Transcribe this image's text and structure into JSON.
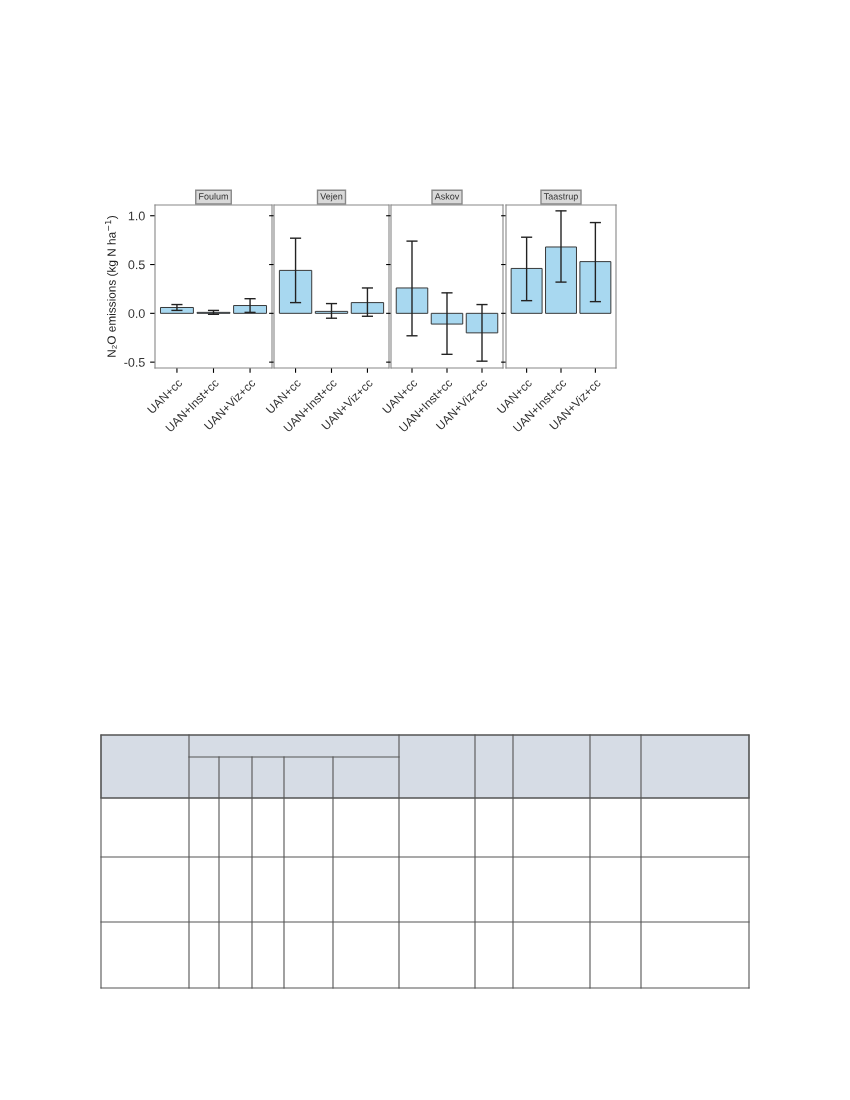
{
  "chart_data": [
    {
      "type": "bar",
      "title": "Foulum",
      "ylabel": "N₂O emissions (kg N ha$^{−1}$)",
      "categories": [
        "UAN+cc",
        "UAN+Inst+cc",
        "UAN+Viz+cc"
      ],
      "values": [
        0.06,
        0.01,
        0.08
      ],
      "errors": [
        [
          0.03,
          0.09
        ],
        [
          -0.01,
          0.03
        ],
        [
          0.01,
          0.15
        ]
      ],
      "colors": [
        "#a8d8f0",
        "#a8d8f0",
        "#a8d8f0"
      ],
      "ylim": [
        -0.56,
        1.11
      ],
      "yticks": [
        {
          "value": -0.5,
          "label": "-0.5"
        },
        {
          "value": 0.0,
          "label": "0.0"
        },
        0.5,
        {
          "value": 1.0,
          "label": "1.0"
        }
      ],
      "grid": false
    },
    {
      "type": "bar",
      "title": "Vejen",
      "categories": [
        "UAN+cc",
        "UAN+Inst+cc",
        "UAN+Viz+cc"
      ],
      "values": [
        0.44,
        0.02,
        0.11
      ],
      "errors": [
        [
          0.11,
          0.77
        ],
        [
          -0.05,
          0.1
        ],
        [
          -0.03,
          0.26
        ]
      ],
      "colors": [
        "#a8d8f0",
        "#a8d8f0",
        "#a8d8f0"
      ],
      "ylim": [
        -0.56,
        1.11
      ],
      "yticks": [
        {
          "value": -0.5,
          "label": null
        },
        {
          "value": 0.0,
          "label": null
        },
        {
          "value": 0.5,
          "label": null
        },
        {
          "value": 1.0,
          "label": null
        }
      ],
      "tick_labels": "x",
      "grid": false
    },
    {
      "type": "bar",
      "title": "Askov",
      "categories": [
        "UAN+cc",
        "UAN+Inst+cc",
        "UAN+Viz+cc"
      ],
      "values": [
        0.26,
        -0.11,
        -0.2
      ],
      "errors": [
        [
          -0.23,
          0.74
        ],
        [
          -0.42,
          0.21
        ],
        [
          -0.49,
          0.09
        ]
      ],
      "colors": [
        "#a8d8f0",
        "#a8d8f0",
        "#a8d8f0"
      ],
      "ylim": [
        -0.56,
        1.11
      ],
      "yticks": [
        {
          "value": -0.5,
          "label": null
        },
        {
          "value": 0.0,
          "label": null
        },
        {
          "value": 0.5,
          "label": null
        },
        {
          "value": 1.0,
          "label": null
        }
      ],
      "tick_labels": "x",
      "grid": false
    },
    {
      "type": "bar",
      "title": "Taastrup",
      "categories": [
        "UAN+cc",
        "UAN+Inst+cc",
        "UAN+Viz+cc"
      ],
      "values": [
        0.46,
        0.68,
        0.53
      ],
      "errors": [
        [
          0.13,
          0.78
        ],
        [
          0.32,
          1.05
        ],
        [
          0.12,
          0.93
        ]
      ],
      "colors": [
        "#a8d8f0",
        "#a8d8f0",
        "#a8d8f0"
      ],
      "ylim": [
        -0.56,
        1.11
      ],
      "yticks": [
        {
          "value": -0.5,
          "label": null
        },
        {
          "value": 0.0,
          "label": null
        },
        {
          "value": 0.5,
          "label": null
        },
        {
          "value": 1.0,
          "label": null
        }
      ],
      "tick_labels": "x",
      "grid": false
    }
  ]
}
